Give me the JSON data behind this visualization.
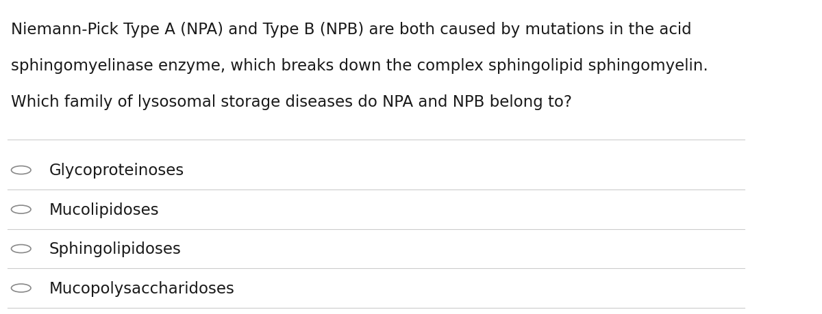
{
  "background_color": "#ffffff",
  "question_text": [
    "Niemann-Pick Type A (NPA) and Type B (NPB) are both caused by mutations in the acid",
    "sphingomyelinase enzyme, which breaks down the complex sphingolipid sphingomyelin.",
    "Which family of lysosomal storage diseases do NPA and NPB belong to?"
  ],
  "options": [
    "Glycoproteinoses",
    "Mucolipidoses",
    "Sphingolipidoses",
    "Mucopolysaccharidoses"
  ],
  "text_color": "#1a1a1a",
  "option_text_color": "#1a1a1a",
  "divider_color": "#cccccc",
  "circle_color": "#888888",
  "question_fontsize": 16.5,
  "option_fontsize": 16.5,
  "fig_width": 12.0,
  "fig_height": 4.6
}
